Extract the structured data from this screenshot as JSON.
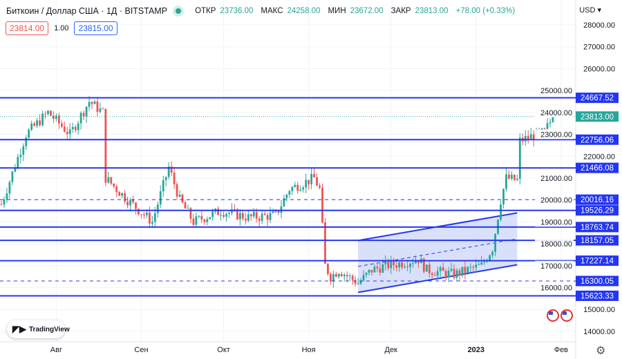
{
  "header": {
    "title": "Биткоин / Доллар США · 1Д · BITSTAMP",
    "open_label": "ОТКР",
    "open": "23736.00",
    "high_label": "МАКС",
    "high": "24258.00",
    "low_label": "МИН",
    "low": "23672.00",
    "close_label": "ЗАКР",
    "close": "23813.00",
    "change": "+78.00 (+0.33%)",
    "bid": "23814.00",
    "spread": "1.00",
    "ask": "23815.00"
  },
  "currency": "USD ▾",
  "logo": "TradingView",
  "colors": {
    "up": "#26a69a",
    "down": "#ef5350",
    "level": "#2436f0",
    "channel_fill": "#c9d3f8"
  },
  "chart_data": {
    "type": "candlestick",
    "xlabel": "",
    "ylabel": "",
    "ylim": [
      14000,
      28000
    ],
    "y_ticks": [
      "28000.00",
      "27000.00",
      "26000.00",
      "25000.00",
      "24000.00",
      "23000.00",
      "22000.00",
      "21000.00",
      "20000.00",
      "19000.00",
      "18000.00",
      "17000.00",
      "16000.00",
      "15000.00",
      "14000.00"
    ],
    "x_ticks": [
      {
        "label": "Авг",
        "day": 20
      },
      {
        "label": "Сен",
        "day": 51
      },
      {
        "label": "Окт",
        "day": 81
      },
      {
        "label": "Ноя",
        "day": 112
      },
      {
        "label": "Дек",
        "day": 142
      },
      {
        "label": "2023",
        "day": 173
      },
      {
        "label": "Фев",
        "day": 204
      }
    ],
    "close_path_anchors": [
      [
        0,
        19800
      ],
      [
        9,
        23000
      ],
      [
        17,
        24000
      ],
      [
        25,
        23000
      ],
      [
        32,
        24500
      ],
      [
        37,
        24000
      ],
      [
        38,
        21000
      ],
      [
        46,
        20000
      ],
      [
        55,
        19000
      ],
      [
        61,
        21500
      ],
      [
        65,
        20000
      ],
      [
        70,
        19000
      ],
      [
        80,
        19500
      ],
      [
        90,
        19200
      ],
      [
        100,
        19300
      ],
      [
        105,
        20500
      ],
      [
        114,
        21000
      ],
      [
        116,
        20500
      ],
      [
        118,
        17000
      ],
      [
        120,
        16500
      ],
      [
        123,
        16800
      ],
      [
        130,
        16200
      ],
      [
        135,
        16800
      ],
      [
        140,
        17000
      ],
      [
        145,
        17100
      ],
      [
        152,
        17300
      ],
      [
        155,
        16800
      ],
      [
        165,
        16600
      ],
      [
        175,
        17000
      ],
      [
        179,
        17800
      ],
      [
        182,
        20000
      ],
      [
        184,
        21000
      ],
      [
        188,
        20900
      ],
      [
        189,
        22700
      ],
      [
        193,
        22900
      ],
      [
        198,
        23100
      ],
      [
        201,
        23813
      ]
    ],
    "levels": [
      {
        "value": 24667.52,
        "label": "24667.52",
        "style": "solid"
      },
      {
        "value": 22756.06,
        "label": "22756.06",
        "style": "solid"
      },
      {
        "value": 21466.08,
        "label": "21466.08",
        "style": "solid"
      },
      {
        "value": 20016.16,
        "label": "20016.16",
        "style": "dashed"
      },
      {
        "value": 19526.29,
        "label": "19526.29",
        "style": "solid"
      },
      {
        "value": 18763.74,
        "label": "18763.74",
        "style": "solid"
      },
      {
        "value": 18157.05,
        "label": "18157.05",
        "style": "solid"
      },
      {
        "value": 17227.14,
        "label": "17227.14",
        "style": "solid"
      },
      {
        "value": 16300.05,
        "label": "16300.05",
        "style": "dashed"
      },
      {
        "value": 15623.33,
        "label": "15623.33",
        "style": "solid"
      }
    ],
    "last_price": {
      "value": 23813,
      "label": "23813.00"
    },
    "channel": {
      "start_day": 130,
      "end_day": 188,
      "lower_start": 15780,
      "lower_end": 17040,
      "upper_start": 18150,
      "upper_end": 19410
    }
  }
}
